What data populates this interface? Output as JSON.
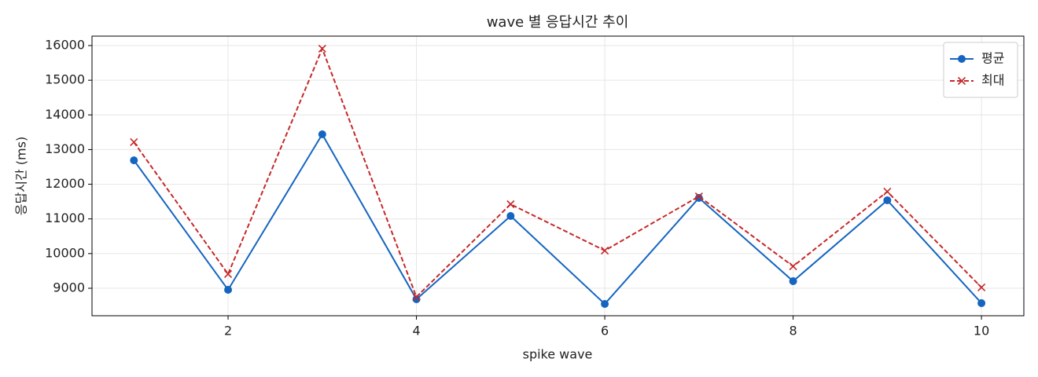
{
  "chart_data": {
    "type": "line",
    "title": "wave 별 응답시간 추이",
    "xlabel": "spike wave",
    "ylabel": "응답시간 (ms)",
    "x": [
      1,
      2,
      3,
      4,
      5,
      6,
      7,
      8,
      9,
      10
    ],
    "series": [
      {
        "name": "평균",
        "color": "#1565c0",
        "marker": "circle",
        "dash": "solid",
        "values": [
          12690,
          8955,
          13440,
          8683,
          11084,
          8547,
          11605,
          9204,
          11537,
          8570
        ]
      },
      {
        "name": "최대",
        "color": "#c62828",
        "marker": "x",
        "dash": "dashed",
        "values": [
          13214,
          9408,
          15910,
          8750,
          11424,
          10087,
          11650,
          9634,
          11787,
          9023
        ]
      }
    ],
    "xlim": [
      0.555,
      10.45
    ],
    "xticks": [
      2,
      4,
      6,
      8,
      10
    ],
    "ylim": [
      8207,
      16272
    ],
    "yticks": [
      9000,
      10000,
      11000,
      12000,
      13000,
      14000,
      15000,
      16000
    ],
    "grid": true,
    "legend": "upper right"
  }
}
